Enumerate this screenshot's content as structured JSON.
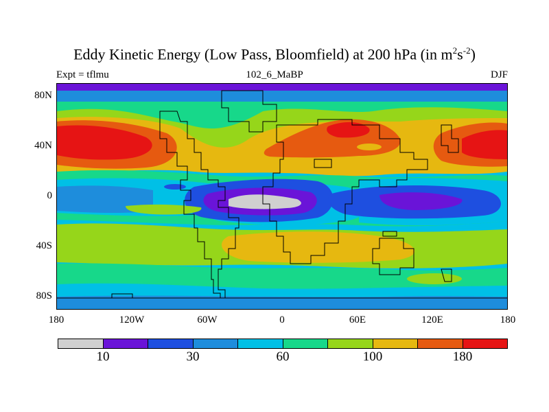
{
  "title": {
    "main": "Eddy Kinetic Energy (Low Pass, Bloomfield) at 200 hPa (in m",
    "sup1": "2",
    "mid": "s",
    "sup2": "-2",
    "end": ")"
  },
  "expt": "Expt = tflmu",
  "subtitle": "102_6_MaBP",
  "season": "DJF",
  "axes": {
    "lat_labels": [
      "80N",
      "40N",
      "0",
      "40S",
      "80S"
    ],
    "lon_labels": [
      "180",
      "120W",
      "60W",
      "0",
      "60E",
      "120E",
      "180"
    ]
  },
  "colorbar": {
    "colors": [
      "#d0d0d0",
      "#6a14d8",
      "#1e4fe0",
      "#1e8ddc",
      "#00c0e6",
      "#17d88a",
      "#96d61a",
      "#e6b810",
      "#e65a10",
      "#e61414"
    ],
    "labels": [
      "10",
      "30",
      "60",
      "100",
      "180"
    ]
  },
  "map_colors": {
    "grey": "#d0d0d0",
    "purple": "#6a14d8",
    "blue": "#1e4fe0",
    "midblue": "#1e8ddc",
    "cyan": "#00c0e6",
    "green": "#17d88a",
    "lime": "#96d61a",
    "yellow": "#e6b810",
    "orange": "#e65a10",
    "red": "#e61414"
  }
}
